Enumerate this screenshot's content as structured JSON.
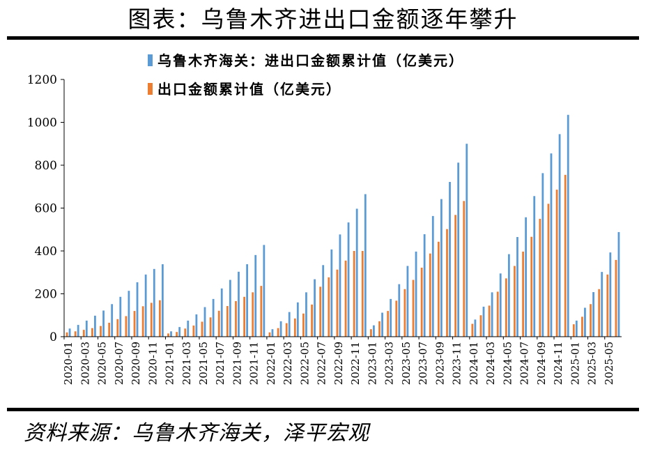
{
  "header": {
    "title": "图表：乌鲁木齐进出口金额逐年攀升"
  },
  "footer": {
    "source": "资料来源：乌鲁木齐海关，泽平宏观"
  },
  "colors": {
    "series1": "#5b9bd5",
    "series2": "#ed7d31"
  },
  "chart_data": {
    "type": "bar",
    "title": "",
    "xlabel": "",
    "ylabel": "",
    "ylim": [
      0,
      1200
    ],
    "yticks": [
      "0",
      "200",
      "400",
      "600",
      "800",
      "1000",
      "1200"
    ],
    "legend_position": "top-left",
    "categories": [
      "2020-01",
      "2020-02",
      "2020-03",
      "2020-04",
      "2020-05",
      "2020-06",
      "2020-07",
      "2020-08",
      "2020-09",
      "2020-10",
      "2020-11",
      "2020-12",
      "2021-01",
      "2021-02",
      "2021-03",
      "2021-04",
      "2021-05",
      "2021-06",
      "2021-07",
      "2021-08",
      "2021-09",
      "2021-10",
      "2021-11",
      "2021-12",
      "2022-01",
      "2022-02",
      "2022-03",
      "2022-04",
      "2022-05",
      "2022-06",
      "2022-07",
      "2022-08",
      "2022-09",
      "2022-10",
      "2022-11",
      "2022-12",
      "2023-01",
      "2023-02",
      "2023-03",
      "2023-04",
      "2023-05",
      "2023-06",
      "2023-07",
      "2023-08",
      "2023-09",
      "2023-10",
      "2023-11",
      "2023-12",
      "2024-01",
      "2024-02",
      "2024-03",
      "2024-04",
      "2024-05",
      "2024-06",
      "2024-07",
      "2024-08",
      "2024-09",
      "2024-10",
      "2024-11",
      "2024-12",
      "2025-01",
      "2025-02",
      "2025-03",
      "2025-04",
      "2025-05",
      "2025-06"
    ],
    "tick_labels": [
      "2020-01",
      "2020-03",
      "2020-05",
      "2020-07",
      "2020-09",
      "2020-11",
      "2021-01",
      "2021-03",
      "2021-05",
      "2021-07",
      "2021-09",
      "2021-11",
      "2022-01",
      "2022-03",
      "2022-05",
      "2022-07",
      "2022-09",
      "2022-11",
      "2023-01",
      "2023-03",
      "2023-05",
      "2023-07",
      "2023-09",
      "2023-11",
      "2024-01",
      "2024-03",
      "2024-05",
      "2024-07",
      "2024-09",
      "2024-11",
      "2025-01",
      "2025-03",
      "2025-05"
    ],
    "series": [
      {
        "name": "乌鲁木齐海关：进出口金额累计值（亿美元）",
        "values": [
          38,
          55,
          75,
          98,
          122,
          152,
          186,
          214,
          254,
          290,
          316,
          338,
          25,
          45,
          75,
          104,
          138,
          176,
          225,
          265,
          303,
          338,
          381,
          428,
          35,
          72,
          115,
          160,
          207,
          268,
          334,
          407,
          477,
          533,
          597,
          665,
          53,
          112,
          176,
          245,
          330,
          397,
          478,
          563,
          642,
          722,
          812,
          900,
          80,
          140,
          207,
          295,
          385,
          465,
          557,
          656,
          763,
          855,
          945,
          1035,
          75,
          135,
          208,
          302,
          393,
          488
        ]
      },
      {
        "name": "出口金额累计值（亿美元）",
        "values": [
          20,
          25,
          32,
          40,
          50,
          65,
          82,
          96,
          120,
          142,
          158,
          170,
          15,
          22,
          38,
          52,
          70,
          90,
          121,
          143,
          166,
          186,
          207,
          237,
          20,
          40,
          63,
          85,
          108,
          150,
          233,
          277,
          313,
          355,
          400,
          400,
          35,
          72,
          120,
          168,
          222,
          265,
          322,
          388,
          443,
          502,
          568,
          633,
          60,
          100,
          145,
          210,
          272,
          330,
          397,
          466,
          550,
          620,
          686,
          755,
          58,
          93,
          152,
          222,
          290,
          358
        ]
      }
    ]
  }
}
